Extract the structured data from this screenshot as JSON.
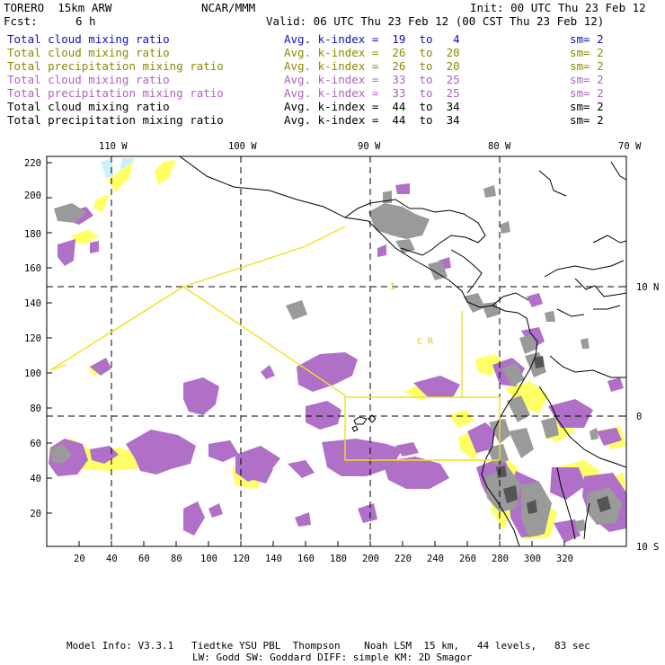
{
  "header": {
    "title": "TORERO  15km ARW",
    "org": "NCAR/MMM",
    "init": "Init: 00 UTC Thu 23 Feb 12",
    "fcst_label": "Fcst:",
    "fcst_value": "6 h",
    "valid": "Valid: 06 UTC Thu 23 Feb 12 (00 CST Thu 23 Feb 12)"
  },
  "legend": {
    "rows": [
      {
        "field": "Total cloud mixing ratio",
        "index": "Avg. k-index =  19  to   4",
        "sm": "sm= 2",
        "color": "#1010c0"
      },
      {
        "field": "Total cloud mixing ratio",
        "index": "Avg. k-index =  26  to  20",
        "sm": "sm= 2",
        "color": "#8a8a00"
      },
      {
        "field": "Total precipitation mixing ratio",
        "index": "Avg. k-index =  26  to  20",
        "sm": "sm= 2",
        "color": "#8a8a00"
      },
      {
        "field": "Total cloud mixing ratio",
        "index": "Avg. k-index =  33  to  25",
        "sm": "sm= 2",
        "color": "#b060c0"
      },
      {
        "field": "Total precipitation mixing ratio",
        "index": "Avg. k-index =  33  to  25",
        "sm": "sm= 2",
        "color": "#b060c0"
      },
      {
        "field": "Total cloud mixing ratio",
        "index": "Avg. k-index =  44  to  34",
        "sm": "sm= 2",
        "color": "#000000"
      },
      {
        "field": "Total precipitation mixing ratio",
        "index": "Avg. k-index =  44  to  34",
        "sm": "sm= 2",
        "color": "#000000"
      }
    ]
  },
  "axes": {
    "lon_labels": [
      "110 W",
      "100 W",
      "90 W",
      "80 W",
      "70 W"
    ],
    "lat_labels": [
      "10 N",
      "0",
      "10 S"
    ],
    "x_ticks": [
      "20",
      "40",
      "60",
      "80",
      "100",
      "120",
      "140",
      "160",
      "180",
      "200",
      "220",
      "240",
      "260",
      "280",
      "300",
      "320"
    ],
    "y_ticks": [
      "220",
      "200",
      "180",
      "160",
      "140",
      "120",
      "100",
      "80",
      "60",
      "40",
      "20"
    ]
  },
  "map_labels": {
    "cr": "C  R"
  },
  "colors": {
    "gray": "#9a9a9a",
    "purple": "#b070c8",
    "yellow": "#ffff66",
    "lightblue": "#c8f0ff",
    "flightpath": "#f0e020"
  },
  "footer": {
    "line1": "Model Info: V3.3.1   Tiedtke YSU PBL  Thompson    Noah LSM  15 km,   44 levels,   83 sec",
    "line2": "LW: Godd SW: Goddard DIFF: simple KM: 2D Smagor"
  }
}
